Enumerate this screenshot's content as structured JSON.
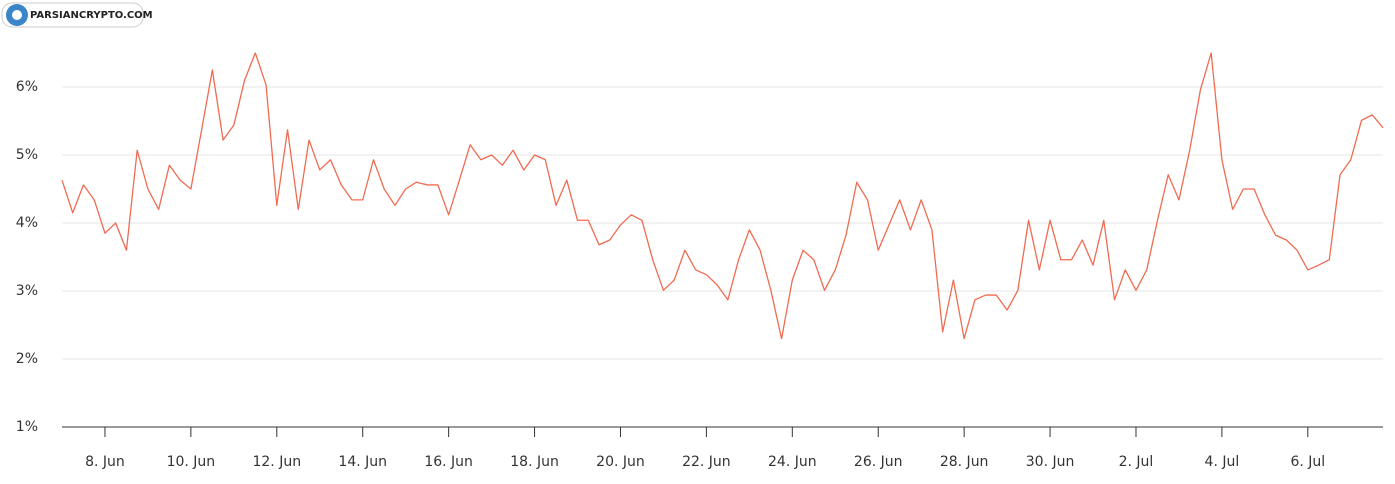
{
  "watermark": "PARSIANCRYPTO.COM",
  "chart_data": {
    "type": "line",
    "x": [
      7,
      7.25,
      7.5,
      7.75,
      8,
      8.25,
      8.5,
      8.75,
      9,
      9.25,
      9.5,
      9.75,
      10,
      10.25,
      10.5,
      10.75,
      11,
      11.25,
      11.5,
      11.75,
      12,
      12.25,
      12.5,
      12.75,
      13,
      13.25,
      13.5,
      13.75,
      14,
      14.25,
      14.5,
      14.75,
      15,
      15.25,
      15.5,
      15.75,
      16,
      16.25,
      16.5,
      16.75,
      17,
      17.25,
      17.5,
      17.75,
      18,
      18.25,
      18.5,
      18.75,
      19,
      19.25,
      19.5,
      19.75,
      20,
      20.25,
      20.5,
      20.75,
      21,
      21.25,
      21.5,
      21.75,
      22,
      22.25,
      22.5,
      22.75,
      23,
      23.25,
      23.5,
      23.75,
      24,
      24.25,
      24.5,
      24.75,
      25,
      25.25,
      25.5,
      25.75,
      26,
      26.25,
      26.5,
      26.75,
      27,
      27.25,
      27.5,
      27.75,
      28,
      28.25,
      28.5,
      28.75,
      29,
      29.25,
      29.5,
      29.75,
      30,
      30.25,
      30.5,
      30.75,
      31,
      31.25,
      31.5,
      31.75,
      32,
      32.25,
      32.5,
      32.75,
      33,
      33.25,
      33.5,
      33.75,
      34,
      34.25,
      34.5,
      34.75,
      35,
      35.25,
      35.5,
      35.75,
      36,
      36.25,
      36.5,
      36.75,
      37,
      37.25,
      37.5,
      37.75
    ],
    "series": [
      {
        "color": "#f06b50",
        "values": [
          4.63,
          4.15,
          4.56,
          4.34,
          3.85,
          4.0,
          3.6,
          5.07,
          4.5,
          4.2,
          4.85,
          4.63,
          4.5,
          5.37,
          6.25,
          5.22,
          5.44,
          6.1,
          6.5,
          6.03,
          4.26,
          5.37,
          4.2,
          5.22,
          4.78,
          4.93,
          4.56,
          4.34,
          4.34,
          4.93,
          4.5,
          4.26,
          4.5,
          4.6,
          4.56,
          4.56,
          4.12,
          4.63,
          5.15,
          4.93,
          5.0,
          4.85,
          5.07,
          4.78,
          5.0,
          4.93,
          4.26,
          4.63,
          4.04,
          4.04,
          3.68,
          3.75,
          3.97,
          4.12,
          4.04,
          3.46,
          3.01,
          3.16,
          3.6,
          3.31,
          3.24,
          3.09,
          2.87,
          3.46,
          3.9,
          3.6,
          3.01,
          2.3,
          3.16,
          3.6,
          3.46,
          3.01,
          3.31,
          3.82,
          4.6,
          4.34,
          3.6,
          3.97,
          4.34,
          3.9,
          4.34,
          3.9,
          2.4,
          3.16,
          2.3,
          2.87,
          2.94,
          2.94,
          2.72,
          3.01,
          4.04,
          3.31,
          4.04,
          3.46,
          3.46,
          3.75,
          3.38,
          4.04,
          2.87,
          3.31,
          3.01,
          3.31,
          4.04,
          4.71,
          4.34,
          5.07,
          5.96,
          6.5,
          4.93,
          4.2,
          4.5,
          4.5,
          4.12,
          3.82,
          3.75,
          3.6,
          3.31,
          3.38,
          3.46,
          4.71,
          4.93,
          5.51,
          5.59,
          5.4
        ]
      }
    ],
    "xlim": [
      7,
      37.75
    ],
    "xticks": [
      {
        "value": 8,
        "label": "8. Jun"
      },
      {
        "value": 10,
        "label": "10. Jun"
      },
      {
        "value": 12,
        "label": "12. Jun"
      },
      {
        "value": 14,
        "label": "14. Jun"
      },
      {
        "value": 16,
        "label": "16. Jun"
      },
      {
        "value": 18,
        "label": "18. Jun"
      },
      {
        "value": 20,
        "label": "20. Jun"
      },
      {
        "value": 22,
        "label": "22. Jun"
      },
      {
        "value": 24,
        "label": "24. Jun"
      },
      {
        "value": 26,
        "label": "26. Jun"
      },
      {
        "value": 28,
        "label": "28. Jun"
      },
      {
        "value": 30,
        "label": "30. Jun"
      },
      {
        "value": 32,
        "label": "2. Jul"
      },
      {
        "value": 34,
        "label": "4. Jul"
      },
      {
        "value": 36,
        "label": "6. Jul"
      }
    ],
    "ylim": [
      1,
      7
    ],
    "yticks": [
      {
        "value": 1,
        "label": "1%"
      },
      {
        "value": 2,
        "label": "2%"
      },
      {
        "value": 3,
        "label": "3%"
      },
      {
        "value": 4,
        "label": "4%"
      },
      {
        "value": 5,
        "label": "5%"
      },
      {
        "value": 6,
        "label": "6%"
      }
    ],
    "grid": true
  }
}
